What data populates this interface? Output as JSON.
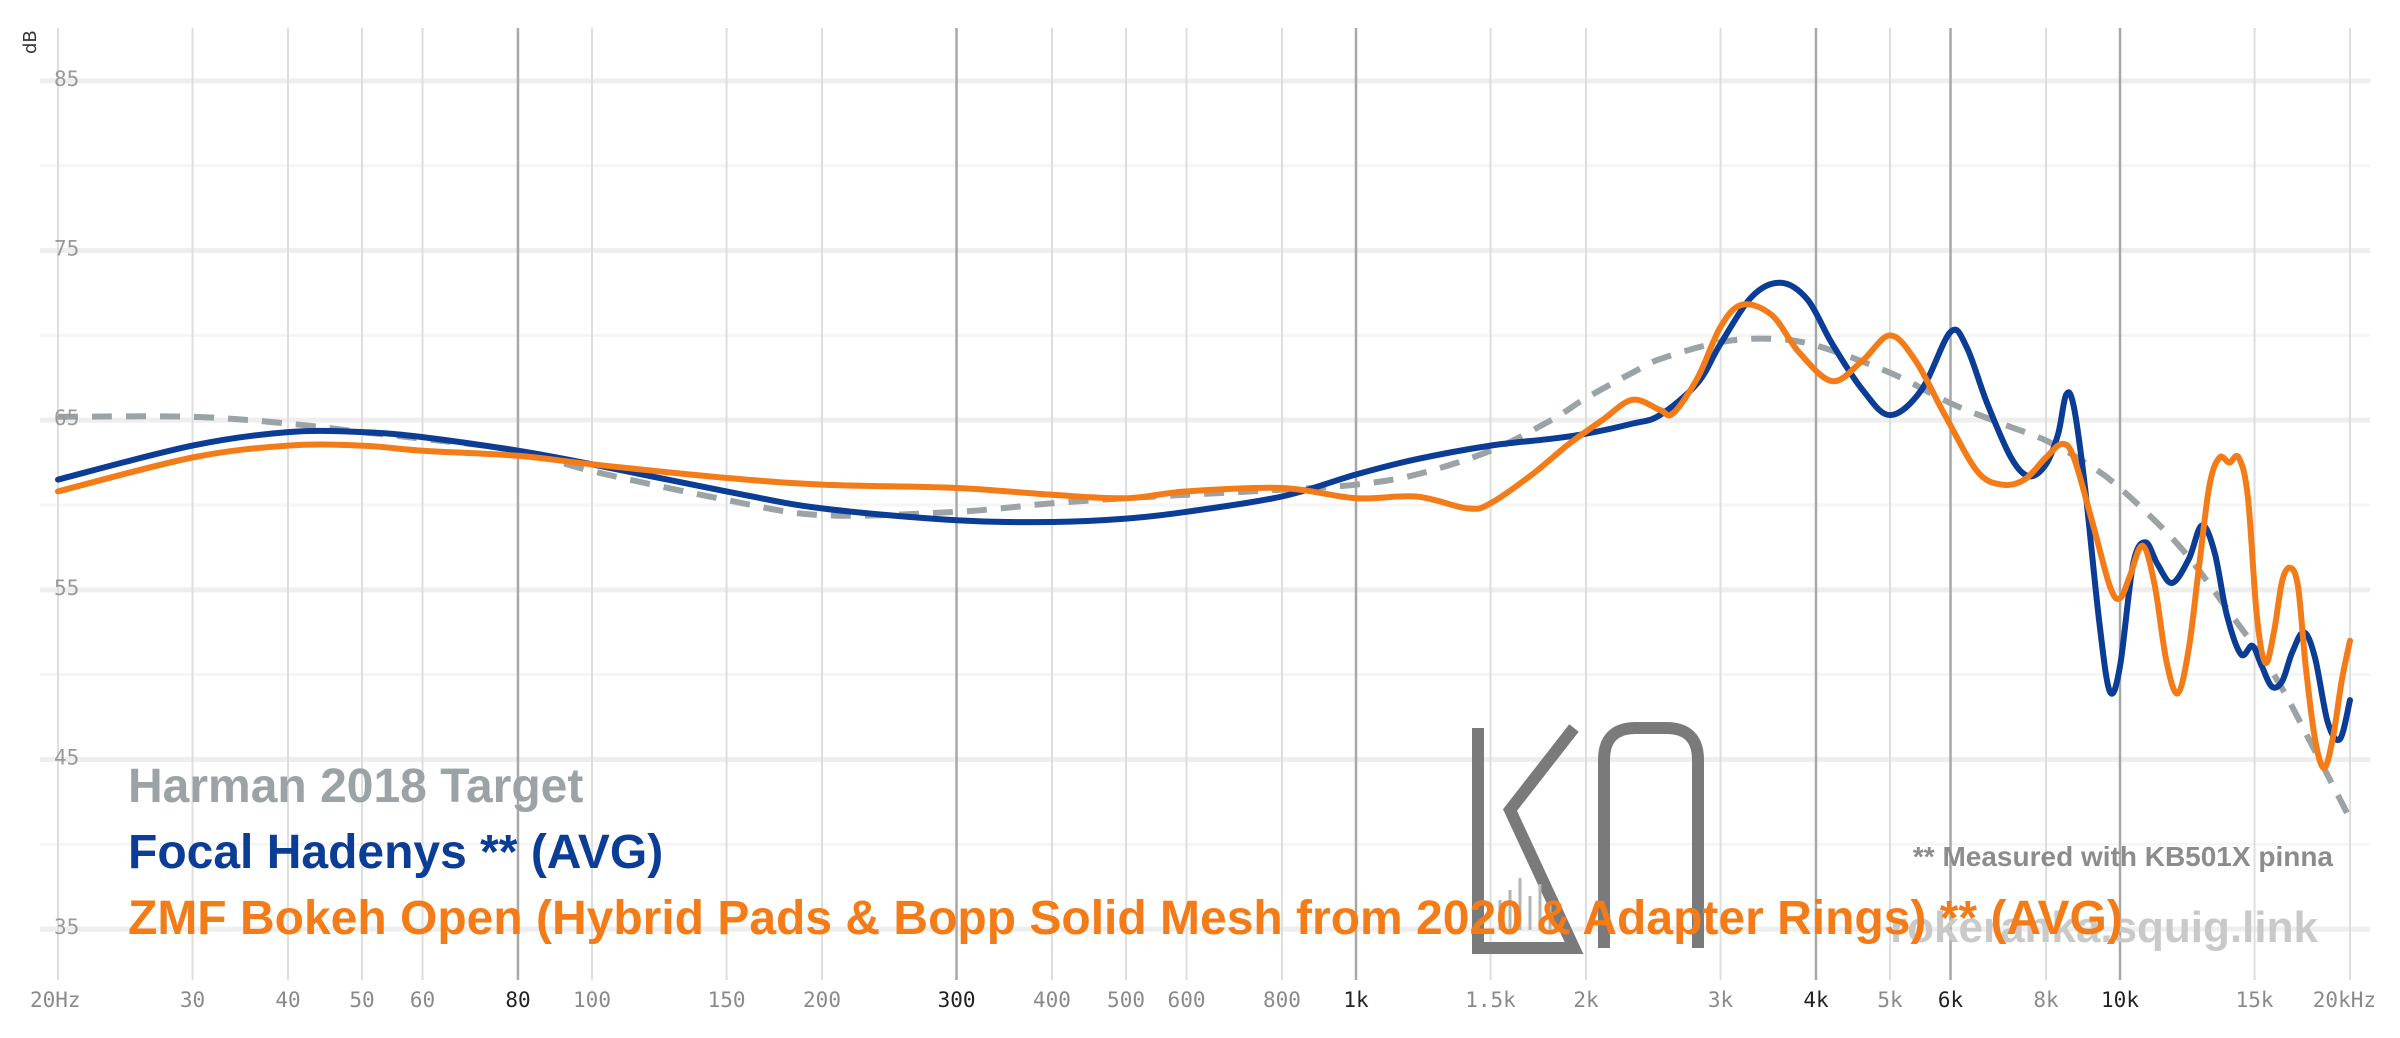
{
  "chart_data": {
    "type": "line",
    "ylabel": "dB",
    "x_scale": "log",
    "xlim": [
      20,
      20000
    ],
    "ylim": [
      32,
      88
    ],
    "y_ticks": [
      85,
      75,
      65,
      55,
      45,
      35
    ],
    "x_ticks": [
      {
        "value": 20,
        "label": "20Hz",
        "bold": false
      },
      {
        "value": 30,
        "label": "30",
        "bold": false
      },
      {
        "value": 40,
        "label": "40",
        "bold": false
      },
      {
        "value": 50,
        "label": "50",
        "bold": false
      },
      {
        "value": 60,
        "label": "60",
        "bold": false
      },
      {
        "value": 80,
        "label": "80",
        "bold": true
      },
      {
        "value": 100,
        "label": "100",
        "bold": false
      },
      {
        "value": 150,
        "label": "150",
        "bold": false
      },
      {
        "value": 200,
        "label": "200",
        "bold": false
      },
      {
        "value": 300,
        "label": "300",
        "bold": true
      },
      {
        "value": 400,
        "label": "400",
        "bold": false
      },
      {
        "value": 500,
        "label": "500",
        "bold": false
      },
      {
        "value": 600,
        "label": "600",
        "bold": false
      },
      {
        "value": 800,
        "label": "800",
        "bold": false
      },
      {
        "value": 1000,
        "label": "1k",
        "bold": true
      },
      {
        "value": 1500,
        "label": "1.5k",
        "bold": false
      },
      {
        "value": 2000,
        "label": "2k",
        "bold": false
      },
      {
        "value": 3000,
        "label": "3k",
        "bold": false
      },
      {
        "value": 4000,
        "label": "4k",
        "bold": true
      },
      {
        "value": 5000,
        "label": "5k",
        "bold": false
      },
      {
        "value": 6000,
        "label": "6k",
        "bold": true
      },
      {
        "value": 8000,
        "label": "8k",
        "bold": false
      },
      {
        "value": 10000,
        "label": "10k",
        "bold": true
      },
      {
        "value": 15000,
        "label": "15k",
        "bold": false
      },
      {
        "value": 20000,
        "label": "20kHz",
        "bold": false
      }
    ],
    "grid_major": [
      80,
      300,
      1000,
      4000,
      6000,
      10000
    ],
    "grid": true,
    "series": [
      {
        "name": "Harman 2018 Target",
        "color": "#9ba3a6",
        "dash": true,
        "points": [
          [
            20,
            65.2
          ],
          [
            30,
            65.2
          ],
          [
            40,
            64.8
          ],
          [
            50,
            64.3
          ],
          [
            60,
            63.9
          ],
          [
            80,
            63.2
          ],
          [
            100,
            62
          ],
          [
            150,
            60.3
          ],
          [
            200,
            59.4
          ],
          [
            300,
            59.6
          ],
          [
            400,
            60.1
          ],
          [
            500,
            60.4
          ],
          [
            600,
            60.6
          ],
          [
            800,
            60.9
          ],
          [
            1000,
            61.2
          ],
          [
            1200,
            61.8
          ],
          [
            1500,
            63.2
          ],
          [
            1800,
            65
          ],
          [
            2000,
            66.3
          ],
          [
            2300,
            67.8
          ],
          [
            2500,
            68.6
          ],
          [
            3000,
            69.6
          ],
          [
            3500,
            69.8
          ],
          [
            4000,
            69.4
          ],
          [
            5000,
            67.8
          ],
          [
            6000,
            66
          ],
          [
            7000,
            64.8
          ],
          [
            8000,
            63.8
          ],
          [
            9000,
            62.5
          ],
          [
            10000,
            61
          ],
          [
            12000,
            57.5
          ],
          [
            14000,
            53.5
          ],
          [
            16000,
            49.8
          ],
          [
            18000,
            45.5
          ],
          [
            20000,
            41.5
          ]
        ]
      },
      {
        "name": "Focal Hadenys ** (AVG)",
        "color": "#0b3c96",
        "dash": false,
        "points": [
          [
            20,
            61.5
          ],
          [
            30,
            63.5
          ],
          [
            40,
            64.3
          ],
          [
            50,
            64.3
          ],
          [
            60,
            64
          ],
          [
            80,
            63.2
          ],
          [
            100,
            62.4
          ],
          [
            150,
            60.8
          ],
          [
            200,
            59.8
          ],
          [
            300,
            59.1
          ],
          [
            400,
            59
          ],
          [
            500,
            59.2
          ],
          [
            600,
            59.6
          ],
          [
            800,
            60.5
          ],
          [
            1000,
            61.8
          ],
          [
            1200,
            62.7
          ],
          [
            1500,
            63.5
          ],
          [
            1800,
            63.9
          ],
          [
            2000,
            64.2
          ],
          [
            2300,
            64.8
          ],
          [
            2500,
            65.3
          ],
          [
            2800,
            67.2
          ],
          [
            3000,
            69.5
          ],
          [
            3300,
            72.3
          ],
          [
            3600,
            73.1
          ],
          [
            3900,
            72.1
          ],
          [
            4200,
            69.5
          ],
          [
            4600,
            66.8
          ],
          [
            5000,
            65.3
          ],
          [
            5500,
            66.8
          ],
          [
            6000,
            70.2
          ],
          [
            6300,
            69.3
          ],
          [
            6700,
            66
          ],
          [
            7200,
            62.8
          ],
          [
            7600,
            61.7
          ],
          [
            8000,
            62.4
          ],
          [
            8300,
            64.2
          ],
          [
            8500,
            66.5
          ],
          [
            8700,
            65.8
          ],
          [
            9000,
            61
          ],
          [
            9400,
            53
          ],
          [
            9700,
            49
          ],
          [
            10000,
            50.5
          ],
          [
            10400,
            56.5
          ],
          [
            10800,
            57.8
          ],
          [
            11200,
            56.5
          ],
          [
            11700,
            55.4
          ],
          [
            12300,
            56.8
          ],
          [
            12800,
            58.8
          ],
          [
            13300,
            57.2
          ],
          [
            13800,
            53.5
          ],
          [
            14400,
            51.2
          ],
          [
            14900,
            51.7
          ],
          [
            15300,
            50.6
          ],
          [
            15800,
            49.3
          ],
          [
            16300,
            49.6
          ],
          [
            16800,
            51.3
          ],
          [
            17400,
            52.5
          ],
          [
            18000,
            51
          ],
          [
            18700,
            47.2
          ],
          [
            19400,
            46.2
          ],
          [
            20000,
            48.5
          ]
        ]
      },
      {
        "name": "ZMF Bokeh Open (Hybrid Pads & Bopp Solid Mesh from 2020 & Adapter Rings) ** (AVG)",
        "color": "#f47c18",
        "dash": false,
        "points": [
          [
            20,
            60.8
          ],
          [
            30,
            62.8
          ],
          [
            40,
            63.5
          ],
          [
            50,
            63.5
          ],
          [
            60,
            63.2
          ],
          [
            80,
            62.9
          ],
          [
            100,
            62.4
          ],
          [
            150,
            61.6
          ],
          [
            200,
            61.2
          ],
          [
            300,
            61
          ],
          [
            400,
            60.6
          ],
          [
            500,
            60.4
          ],
          [
            600,
            60.8
          ],
          [
            800,
            61
          ],
          [
            1000,
            60.4
          ],
          [
            1200,
            60.5
          ],
          [
            1400,
            59.8
          ],
          [
            1500,
            60.1
          ],
          [
            1700,
            61.8
          ],
          [
            1900,
            63.6
          ],
          [
            2100,
            65
          ],
          [
            2300,
            66.2
          ],
          [
            2500,
            65.6
          ],
          [
            2600,
            65.4
          ],
          [
            2800,
            67.5
          ],
          [
            3000,
            70.5
          ],
          [
            3200,
            71.8
          ],
          [
            3500,
            71.2
          ],
          [
            3800,
            69
          ],
          [
            4200,
            67.3
          ],
          [
            4600,
            68.5
          ],
          [
            5000,
            70
          ],
          [
            5400,
            68.5
          ],
          [
            5900,
            65.3
          ],
          [
            6500,
            62
          ],
          [
            7000,
            61.2
          ],
          [
            7500,
            61.5
          ],
          [
            8000,
            62.8
          ],
          [
            8400,
            63.6
          ],
          [
            8700,
            62.8
          ],
          [
            9200,
            59
          ],
          [
            9700,
            55.2
          ],
          [
            10000,
            54.5
          ],
          [
            10300,
            55.8
          ],
          [
            10700,
            57.6
          ],
          [
            11100,
            55.3
          ],
          [
            11500,
            50.8
          ],
          [
            11900,
            48.9
          ],
          [
            12300,
            51.5
          ],
          [
            12700,
            56.5
          ],
          [
            13100,
            61.2
          ],
          [
            13500,
            62.8
          ],
          [
            13900,
            62.5
          ],
          [
            14300,
            62.8
          ],
          [
            14700,
            60.5
          ],
          [
            15100,
            53.5
          ],
          [
            15500,
            50.7
          ],
          [
            15900,
            52.5
          ],
          [
            16300,
            55.5
          ],
          [
            16700,
            56.3
          ],
          [
            17100,
            55.2
          ],
          [
            17500,
            50.5
          ],
          [
            18000,
            46.2
          ],
          [
            18500,
            44.5
          ],
          [
            19000,
            46.3
          ],
          [
            19500,
            49.6
          ],
          [
            20000,
            52
          ]
        ]
      }
    ],
    "legend_placement": "bottom-left",
    "annotation": "** Measured with KB501X pinna"
  },
  "watermark": {
    "logo": "KR",
    "site": "rokeranka.squig.link"
  }
}
